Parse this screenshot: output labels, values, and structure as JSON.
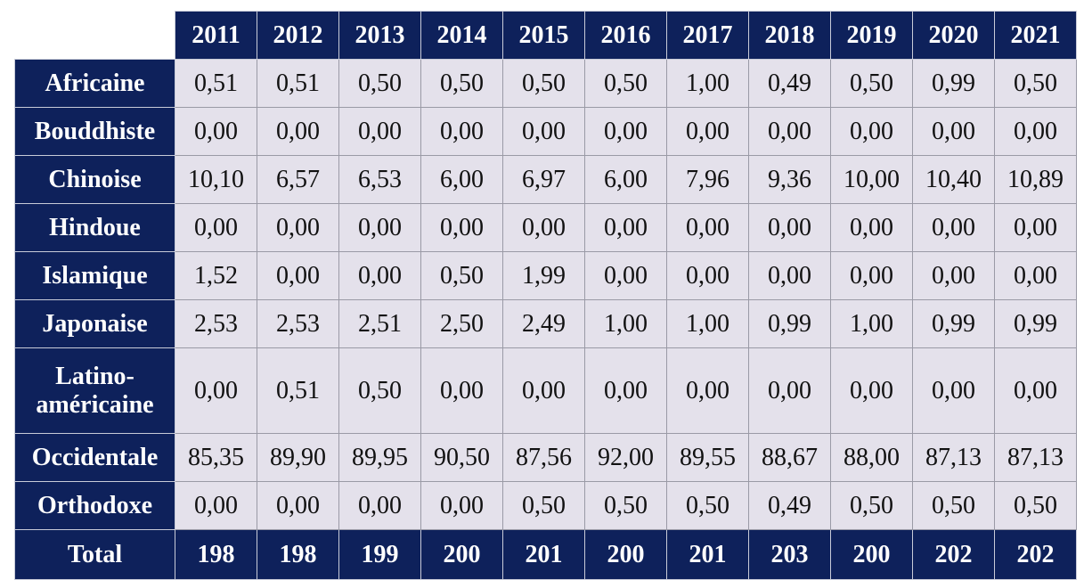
{
  "table": {
    "years": [
      "2011",
      "2012",
      "2013",
      "2014",
      "2015",
      "2016",
      "2017",
      "2018",
      "2019",
      "2020",
      "2021"
    ],
    "rows": [
      {
        "label": "Africaine",
        "values": [
          "0,51",
          "0,51",
          "0,50",
          "0,50",
          "0,50",
          "0,50",
          "1,00",
          "0,49",
          "0,50",
          "0,99",
          "0,50"
        ]
      },
      {
        "label": "Bouddhiste",
        "values": [
          "0,00",
          "0,00",
          "0,00",
          "0,00",
          "0,00",
          "0,00",
          "0,00",
          "0,00",
          "0,00",
          "0,00",
          "0,00"
        ]
      },
      {
        "label": "Chinoise",
        "values": [
          "10,10",
          "6,57",
          "6,53",
          "6,00",
          "6,97",
          "6,00",
          "7,96",
          "9,36",
          "10,00",
          "10,40",
          "10,89"
        ]
      },
      {
        "label": "Hindoue",
        "values": [
          "0,00",
          "0,00",
          "0,00",
          "0,00",
          "0,00",
          "0,00",
          "0,00",
          "0,00",
          "0,00",
          "0,00",
          "0,00"
        ]
      },
      {
        "label": "Islamique",
        "values": [
          "1,52",
          "0,00",
          "0,00",
          "0,50",
          "1,99",
          "0,00",
          "0,00",
          "0,00",
          "0,00",
          "0,00",
          "0,00"
        ]
      },
      {
        "label": "Japonaise",
        "values": [
          "2,53",
          "2,53",
          "2,51",
          "2,50",
          "2,49",
          "1,00",
          "1,00",
          "0,99",
          "1,00",
          "0,99",
          "0,99"
        ]
      },
      {
        "label": "Latino-américaine",
        "values": [
          "0,00",
          "0,51",
          "0,50",
          "0,00",
          "0,00",
          "0,00",
          "0,00",
          "0,00",
          "0,00",
          "0,00",
          "0,00"
        ]
      },
      {
        "label": "Occidentale",
        "values": [
          "85,35",
          "89,90",
          "89,95",
          "90,50",
          "87,56",
          "92,00",
          "89,55",
          "88,67",
          "88,00",
          "87,13",
          "87,13"
        ]
      },
      {
        "label": "Orthodoxe",
        "values": [
          "0,00",
          "0,00",
          "0,00",
          "0,00",
          "0,50",
          "0,50",
          "0,50",
          "0,49",
          "0,50",
          "0,50",
          "0,50"
        ]
      }
    ],
    "total": {
      "label": "Total",
      "values": [
        198,
        198,
        199,
        200,
        201,
        200,
        201,
        203,
        200,
        202,
        202
      ]
    }
  }
}
